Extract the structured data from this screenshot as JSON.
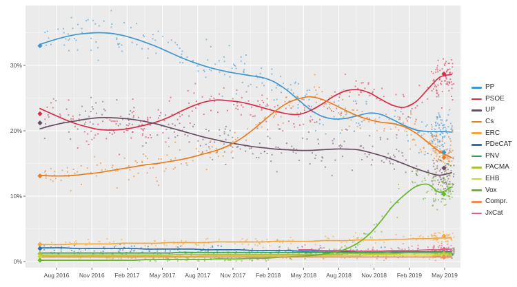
{
  "layout_colors": {
    "background": "#ffffff",
    "panel_bg": "#ebebeb",
    "grid_major": "#ffffff",
    "grid_minor": "#f5f5f5",
    "axis_text": "#4d4d4d",
    "tick_mark": "#333333",
    "legend_text": "#2b2b2b"
  },
  "chart_data": {
    "type": "scatter",
    "description": "Spanish general-election voting-intention polling, Jun 2016 - May 2019. Small points are individual polls, curves are smoothed trend lines, diamonds are election results (Jun 2016 at left, Apr 2019 at right).",
    "x_tick_labels": [
      "Aug 2016",
      "Nov 2016",
      "Feb 2017",
      "May 2017",
      "Aug 2017",
      "Nov 2017",
      "Feb 2018",
      "May 2018",
      "Aug 2018",
      "Nov 2018",
      "Feb 2019",
      "May 2019"
    ],
    "x_tick_months": [
      1.41,
      4.41,
      7.41,
      10.41,
      13.41,
      16.41,
      19.41,
      22.41,
      25.41,
      28.41,
      31.41,
      34.41
    ],
    "y_tick_labels": [
      "0%",
      "10%",
      "20%",
      "30%"
    ],
    "y_tick_values": [
      0,
      10,
      20,
      30
    ],
    "ylim": [
      -1,
      39.2
    ],
    "x_range_months": [
      0,
      35.9
    ],
    "grid": "on",
    "legend_position": "right",
    "series": [
      {
        "name": "PP",
        "label": "PP",
        "color": "#3e95cf",
        "start_value": 33.0,
        "end_value": 16.7,
        "t_start": 0,
        "trend": [
          33.2,
          33.8,
          34.3,
          34.7,
          34.9,
          35.0,
          34.9,
          34.6,
          34.1,
          33.5,
          32.8,
          32.0,
          31.2,
          30.5,
          29.9,
          29.4,
          29.0,
          28.7,
          28.4,
          28.1,
          27.4,
          26.2,
          24.7,
          23.2,
          22.2,
          21.8,
          21.9,
          22.3,
          22.7,
          22.5,
          21.7,
          20.8,
          20.1,
          19.9,
          19.9,
          19.8
        ],
        "scatter": {
          "n": 225,
          "n_end": 65,
          "sd": 1.6,
          "sd_rel": 0
        }
      },
      {
        "name": "PSOE",
        "label": "PSOE",
        "color": "#d62b45",
        "start_value": 22.6,
        "end_value": 28.7,
        "t_start": 0,
        "trend": [
          23.4,
          22.6,
          21.8,
          21.1,
          20.6,
          20.2,
          20.1,
          20.2,
          20.5,
          20.9,
          21.4,
          22.1,
          23.0,
          23.8,
          24.4,
          24.7,
          24.6,
          24.4,
          24.0,
          23.5,
          23.0,
          22.6,
          22.5,
          23.1,
          24.1,
          25.3,
          26.1,
          26.3,
          25.8,
          24.8,
          23.9,
          23.6,
          24.5,
          26.4,
          28.2,
          28.6
        ],
        "scatter": {
          "n": 225,
          "n_end": 70,
          "sd": 1.5,
          "sd_rel": 0
        }
      },
      {
        "name": "UP",
        "label": "UP",
        "color": "#684d62",
        "start_value": 21.2,
        "end_value": 14.3,
        "t_start": 0,
        "trend": [
          20.3,
          20.8,
          21.2,
          21.5,
          21.8,
          22.0,
          22.0,
          21.9,
          21.7,
          21.4,
          21.0,
          20.5,
          20.0,
          19.5,
          19.0,
          18.6,
          18.2,
          17.9,
          17.6,
          17.4,
          17.2,
          17.1,
          17.0,
          17.0,
          17.1,
          17.2,
          17.2,
          17.1,
          16.7,
          16.2,
          15.6,
          14.9,
          14.2,
          13.6,
          13.2,
          13.6
        ],
        "scatter": {
          "n": 220,
          "n_end": 65,
          "sd": 1.4,
          "sd_rel": 0
        }
      },
      {
        "name": "Cs",
        "label": "Cs",
        "color": "#e87d1e",
        "start_value": 13.1,
        "end_value": 15.9,
        "t_start": 0,
        "trend": [
          13.2,
          13.1,
          13.1,
          13.2,
          13.4,
          13.6,
          13.9,
          14.2,
          14.5,
          14.8,
          15.0,
          15.3,
          15.6,
          16.0,
          16.5,
          17.0,
          17.7,
          18.7,
          20.0,
          21.5,
          23.0,
          24.2,
          24.9,
          25.2,
          24.8,
          24.0,
          23.1,
          22.3,
          21.7,
          21.3,
          21.1,
          20.6,
          19.6,
          18.2,
          16.8,
          15.9
        ],
        "scatter": {
          "n": 220,
          "n_end": 65,
          "sd": 1.3,
          "sd_rel": 0
        }
      },
      {
        "name": "ERC",
        "label": "ERC",
        "color": "#f4a73d",
        "start_value": 2.63,
        "end_value": 3.9,
        "t_start": 0,
        "trend": [
          2.6,
          2.6,
          2.6,
          2.7,
          2.7,
          2.7,
          2.7,
          2.8,
          2.8,
          2.8,
          2.8,
          2.9,
          2.9,
          2.9,
          2.9,
          3.0,
          3.0,
          3.0,
          3.0,
          3.0,
          3.1,
          3.1,
          3.1,
          3.1,
          3.2,
          3.2,
          3.2,
          3.3,
          3.3,
          3.3,
          3.4,
          3.4,
          3.5,
          3.5,
          3.6,
          3.6
        ],
        "scatter": {
          "n": 135,
          "n_end": 45,
          "sd": 0.4,
          "sd_rel": 0
        }
      },
      {
        "name": "PDeCAT",
        "label": "PDeCAT",
        "color": "#2a70ae",
        "start_value": 2.0,
        "end_value": null,
        "t_start": 0,
        "trend": [
          2.1,
          2.1,
          2.1,
          2.0,
          2.0,
          2.0,
          2.0,
          2.0,
          2.0,
          1.9,
          1.9,
          1.9,
          1.9,
          1.9,
          1.8,
          1.8,
          1.8,
          1.8,
          1.7,
          1.7,
          1.7,
          1.7,
          1.6,
          1.6,
          1.6,
          1.6,
          1.5,
          1.5,
          1.5,
          1.5,
          1.4,
          1.4,
          1.4,
          1.4,
          1.3,
          1.3
        ],
        "scatter": {
          "n": 110,
          "n_end": 25,
          "sd": 0.35,
          "sd_rel": 0
        }
      },
      {
        "name": "PNV",
        "label": "PNV",
        "color": "#2d9e51",
        "start_value": 1.2,
        "end_value": 1.5,
        "t_start": 0,
        "trend": [
          1.3,
          1.3,
          1.3,
          1.3,
          1.3,
          1.3,
          1.3,
          1.3,
          1.3,
          1.3,
          1.3,
          1.3,
          1.4,
          1.4,
          1.4,
          1.4,
          1.4,
          1.4,
          1.4,
          1.4,
          1.4,
          1.4,
          1.4,
          1.4,
          1.4,
          1.4,
          1.4,
          1.4,
          1.4,
          1.4,
          1.5,
          1.5,
          1.5,
          1.5,
          1.5,
          1.5
        ],
        "scatter": {
          "n": 105,
          "n_end": 30,
          "sd": 0.3,
          "sd_rel": 0
        }
      },
      {
        "name": "PACMA",
        "label": "PACMA",
        "color": "#aabf3b",
        "start_value": 1.2,
        "end_value": 1.3,
        "t_start": 0,
        "trend": [
          1.0,
          1.0,
          1.0,
          1.0,
          1.0,
          1.0,
          1.0,
          1.0,
          1.0,
          1.0,
          1.0,
          1.0,
          1.1,
          1.1,
          1.1,
          1.1,
          1.1,
          1.1,
          1.1,
          1.1,
          1.1,
          1.1,
          1.1,
          1.1,
          1.1,
          1.1,
          1.2,
          1.2,
          1.2,
          1.2,
          1.2,
          1.3,
          1.3,
          1.3,
          1.3,
          1.3
        ],
        "scatter": {
          "n": 95,
          "n_end": 30,
          "sd": 0.28,
          "sd_rel": 0
        }
      },
      {
        "name": "EHB",
        "label": "EHB",
        "color": "#c9d832",
        "start_value": 0.77,
        "end_value": 1.0,
        "t_start": 0,
        "trend": [
          0.8,
          0.8,
          0.8,
          0.8,
          0.8,
          0.8,
          0.8,
          0.8,
          0.8,
          0.8,
          0.8,
          0.8,
          0.8,
          0.8,
          0.9,
          0.9,
          0.9,
          0.9,
          0.9,
          0.9,
          0.9,
          0.9,
          0.9,
          0.9,
          0.9,
          0.9,
          0.9,
          0.9,
          1.0,
          1.0,
          1.0,
          1.0,
          1.0,
          1.0,
          1.0,
          1.0
        ],
        "scatter": {
          "n": 90,
          "n_end": 28,
          "sd": 0.26,
          "sd_rel": 0
        }
      },
      {
        "name": "Vox",
        "label": "Vox",
        "color": "#67b529",
        "start_value": 0.2,
        "end_value": 10.3,
        "t_start": 0,
        "trend": [
          0.2,
          0.2,
          0.2,
          0.2,
          0.2,
          0.2,
          0.2,
          0.2,
          0.2,
          0.3,
          0.3,
          0.3,
          0.3,
          0.3,
          0.3,
          0.4,
          0.4,
          0.4,
          0.5,
          0.5,
          0.6,
          0.7,
          0.8,
          0.9,
          1.1,
          1.4,
          1.9,
          2.8,
          4.2,
          6.2,
          8.5,
          10.2,
          11.5,
          11.8,
          10.6,
          11.4
        ],
        "scatter": {
          "n": 150,
          "n_end": 70,
          "sd": 0.22,
          "sd_rel": 0.16,
          "scatter_t_start": 8
        }
      },
      {
        "name": "Compr",
        "label": "Compr.",
        "color": "#f18a5a",
        "start_value": null,
        "end_value": 0.7,
        "t_start": 0,
        "trend": [
          0.7,
          0.7,
          0.7,
          0.7,
          0.7,
          0.7,
          0.7,
          0.7,
          0.7,
          0.7,
          0.7,
          0.7,
          0.7,
          0.7,
          0.7,
          0.7,
          0.7,
          0.7,
          0.7,
          0.7,
          0.7,
          0.7,
          0.7,
          0.7,
          0.7,
          0.7,
          0.7,
          0.7,
          0.7,
          0.7,
          0.7,
          0.7,
          0.7,
          0.7,
          0.7,
          0.7
        ],
        "scatter": {
          "n": 70,
          "n_end": 22,
          "sd": 0.22,
          "sd_rel": 0
        }
      },
      {
        "name": "JxCat",
        "label": "JxCat",
        "color": "#e25d88",
        "start_value": null,
        "end_value": 1.9,
        "t_start": 22,
        "trend": [
          1.8,
          1.8,
          1.7,
          1.7,
          1.7,
          1.6,
          1.6,
          1.6,
          1.7,
          1.7,
          1.7,
          1.8,
          1.8,
          1.9
        ],
        "scatter": {
          "n": 55,
          "n_end": 40,
          "sd": 0.45,
          "sd_rel": 0
        }
      }
    ]
  }
}
